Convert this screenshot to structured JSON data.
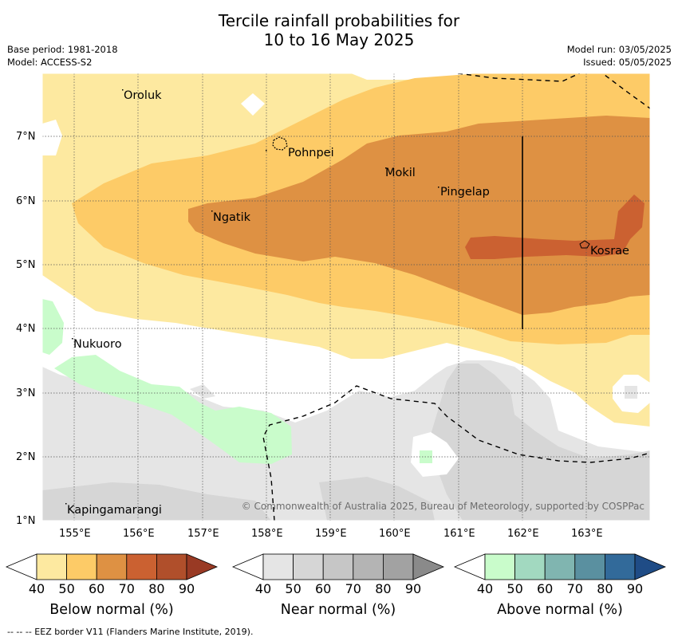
{
  "title": {
    "line1": "Tercile rainfall probabilities for",
    "line2": "10 to 16 May 2025"
  },
  "meta": {
    "base_period": "Base period: 1981-2018",
    "model": "Model: ACCESS-S2",
    "model_run": "Model run: 03/05/2025",
    "issued": "Issued: 05/05/2025"
  },
  "map": {
    "lon_ticks": [
      "155°E",
      "156°E",
      "157°E",
      "158°E",
      "159°E",
      "160°E",
      "161°E",
      "162°E",
      "163°E"
    ],
    "lat_ticks": [
      "7°N",
      "6°N",
      "5°N",
      "4°N",
      "3°N",
      "2°N",
      "1°N"
    ],
    "places": [
      "Oroluk",
      "Pohnpei",
      "Mokil",
      "Pingelap",
      "Ngatik",
      "Kosrae",
      "Nukuoro",
      "Kapingamarangi"
    ],
    "credit": "© Commonwealth of Australia 2025, Bureau of Meteorology, supported by COSPPac",
    "colors": {
      "below_50": "#fde9a0",
      "below_60": "#fdcb67",
      "below_70": "#de9143",
      "below_80": "#cb6131",
      "near_50": "#e5e5e5",
      "near_60": "#d6d6d6",
      "above_50": "#c9fccb"
    }
  },
  "colorbars": [
    {
      "title": "Below normal (%)",
      "labels": [
        "40",
        "50",
        "60",
        "70",
        "80",
        "90"
      ],
      "colors": [
        "#fde9a0",
        "#fdcb67",
        "#de9143",
        "#cb6131",
        "#b04f2b",
        "#993a24"
      ]
    },
    {
      "title": "Near normal (%)",
      "labels": [
        "40",
        "50",
        "60",
        "70",
        "80",
        "90"
      ],
      "colors": [
        "#e5e5e5",
        "#d6d6d6",
        "#c6c6c6",
        "#b4b4b4",
        "#a2a2a2",
        "#8a8a8a"
      ]
    },
    {
      "title": "Above normal (%)",
      "labels": [
        "40",
        "50",
        "60",
        "70",
        "80",
        "90"
      ],
      "colors": [
        "#c9fccb",
        "#a2d9c0",
        "#80b5b0",
        "#5a90a0",
        "#326a9a",
        "#1f4c86"
      ]
    }
  ],
  "footer": "--  --  -- EEZ border V11 (Flanders Marine Institute, 2019)."
}
